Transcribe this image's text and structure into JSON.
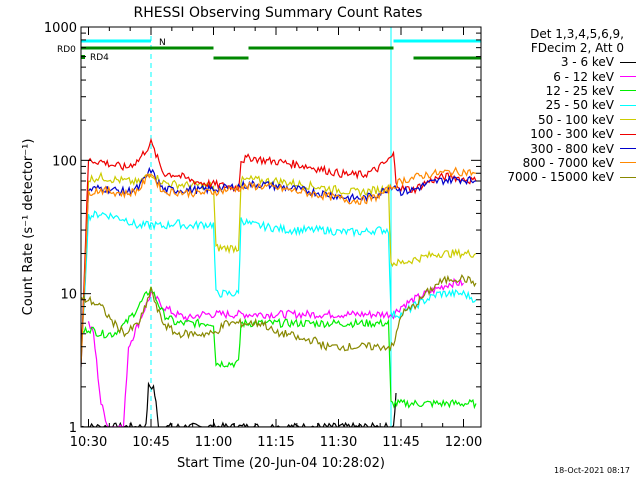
{
  "chart_data": {
    "type": "line",
    "title": "RHESSI Observing Summary Count Rates",
    "xlabel": "Start Time (20-Jun-04 10:28:02)",
    "ylabel": "Count Rate (s⁻¹ detector⁻¹)",
    "yscale": "log",
    "ylim": [
      1,
      1000
    ],
    "xlim_minutes": [
      10.47,
      12.07
    ],
    "x_ticks": [
      "10:30",
      "10:45",
      "11:00",
      "11:15",
      "11:30",
      "11:45",
      "12:00"
    ],
    "x_tick_values": [
      10.5,
      10.75,
      11.0,
      11.25,
      11.5,
      11.75,
      12.0
    ],
    "y_ticks": [
      "1",
      "10",
      "100",
      "1000"
    ],
    "y_tick_values": [
      1,
      10,
      100,
      1000
    ],
    "legend_position": "right",
    "legend_header": [
      "Det 1,3,4,5,6,9,",
      "FDecim 2, Att 0"
    ],
    "series": [
      {
        "name": "3 - 6 keV",
        "color": "#000000",
        "x": [
          10.47,
          10.73,
          10.74,
          10.76,
          10.77,
          10.78,
          11.72,
          11.73
        ],
        "y": [
          1,
          1,
          2,
          2,
          1.5,
          1,
          1,
          1.8
        ]
      },
      {
        "name": "6 - 12 keV",
        "color": "#ff00ff",
        "x": [
          10.5,
          10.52,
          10.55,
          10.58,
          10.6,
          10.62,
          10.64,
          10.66,
          10.7,
          10.75,
          10.8,
          10.85,
          10.9,
          10.95,
          11.0,
          11.05,
          11.1,
          11.15,
          11.2,
          11.25,
          11.3,
          11.35,
          11.4,
          11.45,
          11.5,
          11.55,
          11.6,
          11.65,
          11.7,
          11.72,
          11.75,
          11.8,
          11.85,
          11.9,
          11.95,
          12.0
        ],
        "y": [
          6,
          5,
          1.5,
          1,
          1,
          1,
          1,
          4,
          6,
          10,
          8,
          7,
          6.5,
          7,
          7,
          7,
          7,
          7,
          7,
          7,
          7,
          7,
          7,
          7,
          7,
          7,
          7,
          7,
          7,
          7,
          8,
          9,
          10,
          11,
          12,
          12
        ]
      },
      {
        "name": "12 - 25 keV",
        "color": "#00ee00",
        "x": [
          10.47,
          10.5,
          10.55,
          10.6,
          10.65,
          10.7,
          10.75,
          10.8,
          10.85,
          10.9,
          10.95,
          11.0,
          11.01,
          11.05,
          11.1,
          11.11,
          11.15,
          11.2,
          11.25,
          11.3,
          11.35,
          11.4,
          11.45,
          11.5,
          11.55,
          11.6,
          11.65,
          11.7,
          11.71,
          11.75,
          11.8,
          11.85,
          11.9,
          11.95,
          12.0,
          12.05
        ],
        "y": [
          5,
          5.5,
          5,
          5,
          6,
          8,
          11,
          7,
          6,
          6,
          6,
          6,
          3,
          3,
          3,
          6,
          6,
          6,
          6,
          6,
          6,
          6,
          6,
          6,
          6,
          6,
          6,
          6,
          1.5,
          1.5,
          1.5,
          1.5,
          1.5,
          1.5,
          1.5,
          1.5
        ]
      },
      {
        "name": "25 - 50 keV",
        "color": "#00ffff",
        "x": [
          10.47,
          10.5,
          10.55,
          10.6,
          10.65,
          10.7,
          10.75,
          10.8,
          10.85,
          10.9,
          10.95,
          11.0,
          11.01,
          11.05,
          11.1,
          11.11,
          11.15,
          11.2,
          11.25,
          11.3,
          11.35,
          11.4,
          11.45,
          11.5,
          11.55,
          11.6,
          11.65,
          11.7,
          11.71,
          11.75,
          11.8,
          11.85,
          11.9,
          11.95,
          12.0,
          12.05
        ],
        "y": [
          3,
          38,
          40,
          38,
          36,
          32,
          33,
          32,
          34,
          32,
          33,
          33,
          10,
          10,
          10,
          36,
          33,
          32,
          31,
          30,
          30,
          30,
          30,
          29,
          29,
          29,
          30,
          30,
          7,
          7,
          8,
          9,
          10,
          10,
          10,
          9
        ]
      },
      {
        "name": "50 - 100 keV",
        "color": "#cccc00",
        "x": [
          10.47,
          10.5,
          10.55,
          10.6,
          10.65,
          10.7,
          10.73,
          10.75,
          10.77,
          10.8,
          10.85,
          10.9,
          10.95,
          11.0,
          11.01,
          11.05,
          11.1,
          11.11,
          11.15,
          11.2,
          11.25,
          11.3,
          11.35,
          11.4,
          11.45,
          11.5,
          11.55,
          11.6,
          11.65,
          11.7,
          11.71,
          11.75,
          11.8,
          11.85,
          11.9,
          11.95,
          12.0,
          12.05
        ],
        "y": [
          3,
          72,
          75,
          72,
          70,
          68,
          75,
          80,
          75,
          68,
          66,
          65,
          65,
          64,
          22,
          22,
          22,
          70,
          72,
          70,
          70,
          68,
          66,
          64,
          62,
          60,
          58,
          58,
          60,
          62,
          17,
          17,
          18,
          19,
          20,
          20,
          20,
          20
        ]
      },
      {
        "name": "100 - 300 keV",
        "color": "#ee0000",
        "x": [
          10.47,
          10.5,
          10.55,
          10.6,
          10.65,
          10.7,
          10.73,
          10.75,
          10.77,
          10.8,
          10.85,
          10.9,
          10.95,
          11.0,
          11.05,
          11.1,
          11.11,
          11.15,
          11.2,
          11.25,
          11.3,
          11.35,
          11.4,
          11.45,
          11.5,
          11.55,
          11.6,
          11.65,
          11.7,
          11.72,
          11.73,
          11.75,
          11.8,
          11.85,
          11.9,
          11.95,
          12.0,
          12.05
        ],
        "y": [
          3,
          100,
          98,
          92,
          88,
          100,
          120,
          135,
          110,
          80,
          78,
          72,
          68,
          66,
          64,
          62,
          100,
          105,
          100,
          98,
          95,
          92,
          88,
          84,
          80,
          78,
          78,
          85,
          100,
          110,
          70,
          62,
          60,
          68,
          74,
          76,
          72,
          70
        ]
      },
      {
        "name": "300 - 800 keV",
        "color": "#0000cc",
        "x": [
          10.47,
          10.5,
          10.55,
          10.6,
          10.65,
          10.7,
          10.73,
          10.75,
          10.77,
          10.8,
          10.85,
          10.9,
          10.95,
          11.0,
          11.05,
          11.1,
          11.15,
          11.2,
          11.25,
          11.3,
          11.35,
          11.4,
          11.45,
          11.5,
          11.55,
          11.6,
          11.65,
          11.7,
          11.72,
          11.75,
          11.8,
          11.85,
          11.9,
          11.95,
          12.0,
          12.05
        ],
        "y": [
          3,
          60,
          62,
          60,
          58,
          62,
          75,
          85,
          72,
          60,
          60,
          60,
          60,
          61,
          62,
          64,
          66,
          66,
          64,
          62,
          60,
          58,
          56,
          54,
          52,
          52,
          55,
          62,
          66,
          58,
          60,
          66,
          70,
          72,
          72,
          70
        ]
      },
      {
        "name": "800 - 7000 keV",
        "color": "#ff8800",
        "x": [
          10.47,
          10.5,
          10.55,
          10.6,
          10.65,
          10.7,
          10.73,
          10.75,
          10.77,
          10.8,
          10.85,
          10.9,
          10.95,
          11.0,
          11.05,
          11.1,
          11.15,
          11.2,
          11.25,
          11.3,
          11.35,
          11.4,
          11.45,
          11.5,
          11.55,
          11.6,
          11.65,
          11.7,
          11.72,
          11.75,
          11.8,
          11.85,
          11.9,
          11.95,
          12.0,
          12.05
        ],
        "y": [
          3,
          58,
          60,
          58,
          56,
          60,
          72,
          82,
          70,
          58,
          58,
          57,
          57,
          58,
          60,
          62,
          64,
          64,
          62,
          60,
          58,
          56,
          54,
          52,
          50,
          50,
          53,
          60,
          64,
          70,
          74,
          78,
          80,
          82,
          82,
          80
        ]
      },
      {
        "name": "7000 - 15000 keV",
        "color": "#888800",
        "x": [
          10.47,
          10.5,
          10.55,
          10.6,
          10.65,
          10.7,
          10.73,
          10.75,
          10.77,
          10.8,
          10.85,
          10.9,
          10.95,
          11.0,
          11.05,
          11.1,
          11.15,
          11.2,
          11.25,
          11.3,
          11.35,
          11.4,
          11.45,
          11.5,
          11.55,
          11.6,
          11.65,
          11.7,
          11.72,
          11.75,
          11.8,
          11.85,
          11.9,
          11.95,
          12.0,
          12.05
        ],
        "y": [
          9,
          9,
          8,
          6,
          5,
          6,
          8,
          11,
          8,
          6,
          5,
          5,
          5,
          5,
          6,
          6,
          6,
          6,
          5,
          5,
          4.5,
          4.5,
          4,
          4,
          4,
          4,
          4,
          4,
          4,
          7,
          8,
          10,
          12,
          13,
          13,
          12
        ]
      }
    ],
    "annotations": {
      "flag_labels": [
        {
          "text": "N",
          "color": "#00ffff"
        },
        {
          "text": "RD0",
          "color": "#008800"
        },
        {
          "text": "RD4",
          "color": "#008800"
        }
      ],
      "flag_bars": [
        {
          "row": "N",
          "color": "#00ffff",
          "segments": [
            [
              10.47,
              10.75
            ],
            [
              11.72,
              12.07
            ]
          ]
        },
        {
          "row": "RD0",
          "color": "#008800",
          "segments": [
            [
              10.47,
              11.0
            ],
            [
              11.14,
              11.72
            ]
          ]
        },
        {
          "row": "RD4",
          "color": "#008800",
          "segments": [
            [
              11.0,
              11.14
            ],
            [
              11.8,
              12.07
            ]
          ]
        }
      ],
      "vlines": [
        {
          "x": 10.75,
          "color": "#00ffff",
          "style": "dashed"
        },
        {
          "x": 11.71,
          "color": "#00ffff",
          "style": "solid"
        },
        {
          "x": 12.07,
          "color": "#00ffff",
          "style": "dashed"
        }
      ]
    },
    "footer_stamp": "18-Oct-2021 08:17"
  }
}
